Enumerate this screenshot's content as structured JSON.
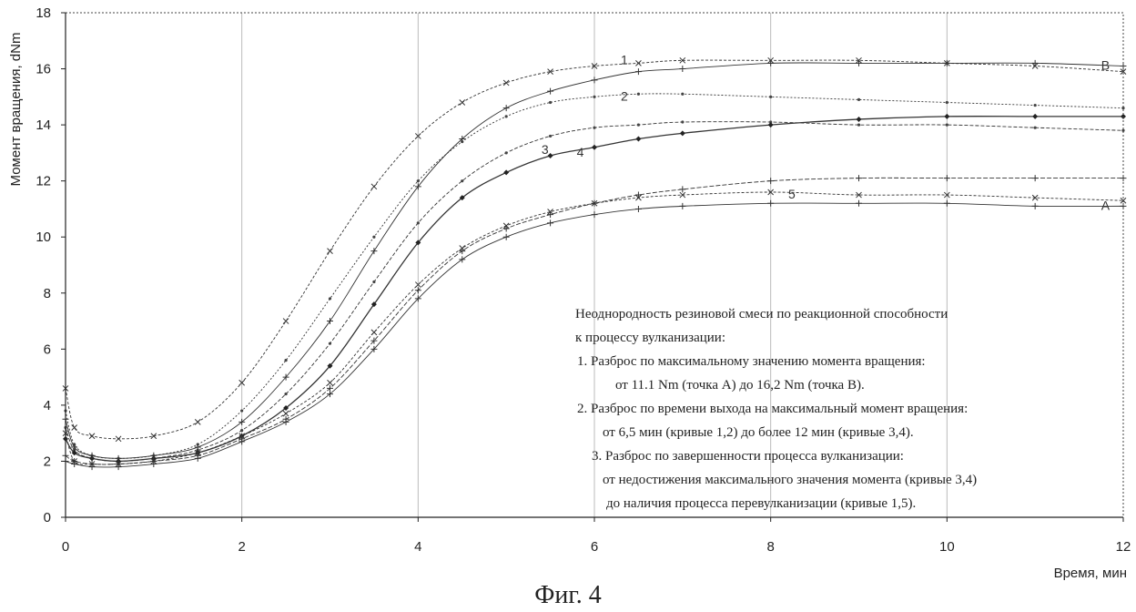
{
  "chart_data": {
    "type": "line",
    "xlabel": "Время, мин",
    "ylabel": "Момент вращения, dNm",
    "xlim": [
      0,
      12
    ],
    "ylim": [
      0,
      18
    ],
    "xticks": [
      0,
      2,
      4,
      6,
      8,
      10,
      12
    ],
    "yticks": [
      0,
      2,
      4,
      6,
      8,
      10,
      12,
      14,
      16,
      18
    ],
    "grid": "vertical",
    "series": [
      {
        "name": "1",
        "marker": "cross",
        "x": [
          0,
          0.1,
          0.3,
          0.6,
          1.0,
          1.5,
          2.0,
          2.5,
          3.0,
          3.5,
          4.0,
          4.5,
          5.0,
          5.5,
          6.0,
          6.5,
          7.0,
          8.0,
          9.0,
          10.0,
          11.0,
          12.0
        ],
        "y": [
          4.6,
          3.2,
          2.9,
          2.8,
          2.9,
          3.4,
          4.8,
          7.0,
          9.5,
          11.8,
          13.6,
          14.8,
          15.5,
          15.9,
          16.1,
          16.2,
          16.3,
          16.3,
          16.3,
          16.2,
          16.1,
          15.9
        ]
      },
      {
        "name": "2",
        "marker": "dot",
        "x": [
          0,
          0.1,
          0.3,
          0.6,
          1.0,
          1.5,
          2.0,
          2.5,
          3.0,
          3.5,
          4.0,
          4.5,
          5.0,
          5.5,
          6.0,
          6.5,
          7.0,
          8.0,
          9.0,
          10.0,
          11.0,
          12.0
        ],
        "y": [
          3.8,
          2.6,
          2.2,
          2.1,
          2.2,
          2.6,
          3.8,
          5.6,
          7.8,
          10.0,
          12.0,
          13.4,
          14.3,
          14.8,
          15.0,
          15.1,
          15.1,
          15.0,
          14.9,
          14.8,
          14.7,
          14.6
        ]
      },
      {
        "name": "3",
        "marker": "dot",
        "x": [
          0,
          0.1,
          0.3,
          0.6,
          1.0,
          1.5,
          2.0,
          2.5,
          3.0,
          3.5,
          4.0,
          4.5,
          5.0,
          5.5,
          6.0,
          6.5,
          7.0,
          8.0,
          9.0,
          10.0,
          11.0,
          12.0
        ],
        "y": [
          3.2,
          2.4,
          2.1,
          2.0,
          2.1,
          2.4,
          3.1,
          4.4,
          6.2,
          8.4,
          10.5,
          12.0,
          13.0,
          13.6,
          13.9,
          14.0,
          14.1,
          14.1,
          14.0,
          14.0,
          13.9,
          13.8
        ]
      },
      {
        "name": "4",
        "marker": "diamond",
        "x": [
          0,
          0.1,
          0.3,
          0.6,
          1.0,
          1.5,
          2.0,
          2.5,
          3.0,
          3.5,
          4.0,
          4.5,
          5.0,
          5.5,
          6.0,
          6.5,
          7.0,
          8.0,
          9.0,
          10.0,
          11.0,
          12.0
        ],
        "y": [
          2.8,
          2.3,
          2.1,
          2.0,
          2.1,
          2.3,
          2.9,
          3.9,
          5.4,
          7.6,
          9.8,
          11.4,
          12.3,
          12.9,
          13.2,
          13.5,
          13.7,
          14.0,
          14.2,
          14.3,
          14.3,
          14.3
        ]
      },
      {
        "name": "5",
        "marker": "cross",
        "x": [
          0,
          0.1,
          0.3,
          0.6,
          1.0,
          1.5,
          2.0,
          2.5,
          3.0,
          3.5,
          4.0,
          4.5,
          5.0,
          5.5,
          6.0,
          6.5,
          7.0,
          8.0,
          9.0,
          10.0,
          11.0,
          12.0
        ],
        "y": [
          3.0,
          2.0,
          1.9,
          1.9,
          2.0,
          2.3,
          2.9,
          3.7,
          4.8,
          6.6,
          8.3,
          9.6,
          10.4,
          10.9,
          11.2,
          11.4,
          11.5,
          11.6,
          11.5,
          11.5,
          11.4,
          11.3
        ]
      },
      {
        "name": "A",
        "marker": "plus",
        "x": [
          0,
          0.1,
          0.3,
          0.6,
          1.0,
          1.5,
          2.0,
          2.5,
          3.0,
          3.5,
          4.0,
          4.5,
          5.0,
          5.5,
          6.0,
          6.5,
          7.0,
          8.0,
          9.0,
          10.0,
          11.0,
          12.0
        ],
        "y": [
          2.0,
          1.9,
          1.8,
          1.8,
          1.9,
          2.1,
          2.7,
          3.4,
          4.4,
          6.0,
          7.8,
          9.2,
          10.0,
          10.5,
          10.8,
          11.0,
          11.1,
          11.2,
          11.2,
          11.2,
          11.1,
          11.1
        ]
      },
      {
        "name": "B",
        "marker": "plus",
        "x": [
          0,
          0.1,
          0.3,
          0.6,
          1.0,
          1.5,
          2.0,
          2.5,
          3.0,
          3.5,
          4.0,
          4.5,
          5.0,
          5.5,
          6.0,
          6.5,
          7.0,
          8.0,
          9.0,
          10.0,
          11.0,
          12.0
        ],
        "y": [
          3.5,
          2.5,
          2.2,
          2.1,
          2.2,
          2.5,
          3.4,
          5.0,
          7.0,
          9.5,
          11.8,
          13.5,
          14.6,
          15.2,
          15.6,
          15.9,
          16.0,
          16.2,
          16.2,
          16.2,
          16.2,
          16.1
        ]
      },
      {
        "name": "",
        "marker": "plus",
        "x": [
          0,
          0.1,
          0.3,
          0.6,
          1.0,
          1.5,
          2.0,
          2.5,
          3.0,
          3.5,
          4.0,
          4.5,
          5.0,
          5.5,
          6.0,
          6.5,
          7.0,
          8.0,
          9.0,
          10.0,
          11.0,
          12.0
        ],
        "y": [
          2.2,
          2.0,
          1.9,
          1.9,
          2.0,
          2.2,
          2.8,
          3.5,
          4.6,
          6.3,
          8.1,
          9.5,
          10.3,
          10.8,
          11.2,
          11.5,
          11.7,
          12.0,
          12.1,
          12.1,
          12.1,
          12.1
        ]
      }
    ],
    "curve_labels": [
      {
        "text": "1",
        "x": 6.3,
        "y": 16.3
      },
      {
        "text": "2",
        "x": 6.3,
        "y": 15.0
      },
      {
        "text": "3",
        "x": 5.4,
        "y": 13.1
      },
      {
        "text": "4",
        "x": 5.8,
        "y": 13.0
      },
      {
        "text": "5",
        "x": 8.2,
        "y": 11.5
      },
      {
        "text": "B",
        "x": 11.75,
        "y": 16.1
      },
      {
        "text": "A",
        "x": 11.75,
        "y": 11.1
      }
    ],
    "annotation_lines": [
      "Неоднородность резиновой смеси по реакционной способности",
      " к процессу вулканизации:",
      "1. Разброс по  максимальному  значению момента вращения:",
      "от       11.1   Nm  (точка А) до 16,2    Nm  (точка В).",
      "2. Разброс по времени выхода на максимальный момент вращения:",
      "от   6,5 мин (кривые 1,2) до более 12 мин (кривые 3,4).",
      "3. Разброс по завершенности процесса вулканизации:",
      "от недостижения максимального значения момента (кривые 3,4)",
      "до наличия процесса перевулканизации (кривые 1,5)."
    ]
  },
  "caption": "Фиг. 4"
}
